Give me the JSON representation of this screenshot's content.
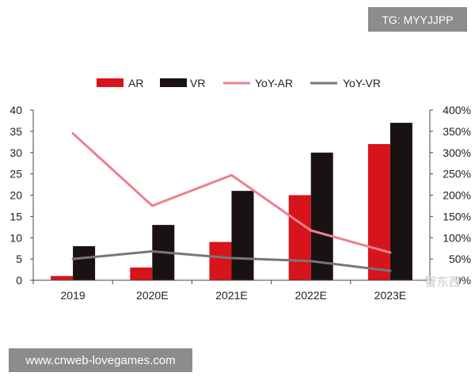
{
  "tag_label": "TG: MYYJJPP",
  "site_url": "www.cnweb-lovegames.com",
  "watermark": "智东西",
  "chart_data": {
    "type": "bar",
    "categories": [
      "2019",
      "2020E",
      "2021E",
      "2022E",
      "2023E"
    ],
    "series": [
      {
        "name": "AR",
        "kind": "bar",
        "axis": "left",
        "color": "#d7141b",
        "values": [
          1,
          3,
          9,
          20,
          32
        ]
      },
      {
        "name": "VR",
        "kind": "bar",
        "axis": "left",
        "color": "#1a1212",
        "values": [
          8,
          13,
          21,
          30,
          37
        ]
      },
      {
        "name": "YoY-AR",
        "kind": "line",
        "axis": "right",
        "color": "#ee7f8e",
        "values": [
          345,
          175,
          247,
          117,
          65
        ]
      },
      {
        "name": "YoY-VR",
        "kind": "line",
        "axis": "right",
        "color": "#777777",
        "values": [
          50,
          68,
          52,
          45,
          22
        ]
      }
    ],
    "y_left": {
      "min": 0,
      "max": 40,
      "ticks": [
        "0",
        "5",
        "10",
        "15",
        "20",
        "25",
        "30",
        "35",
        "40"
      ]
    },
    "y_right": {
      "min": 0,
      "max": 400,
      "ticks": [
        "0%",
        "50%",
        "100%",
        "150%",
        "200%",
        "250%",
        "300%",
        "350%",
        "400%"
      ]
    },
    "legend": [
      "AR",
      "VR",
      "YoY-AR",
      "YoY-VR"
    ],
    "legend_position": "top",
    "grid": false,
    "title": ""
  }
}
